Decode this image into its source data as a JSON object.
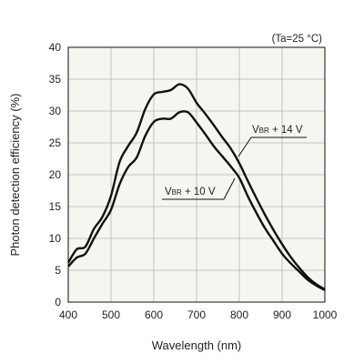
{
  "chart_data": {
    "type": "line",
    "title": "",
    "xlabel": "Wavelength (nm)",
    "ylabel": "Photon detection efficiency (%)",
    "xlim": [
      400,
      1000
    ],
    "ylim": [
      0,
      40
    ],
    "xticks": [
      400,
      500,
      600,
      700,
      800,
      900,
      1000
    ],
    "yticks": [
      0,
      5,
      10,
      15,
      20,
      25,
      30,
      35,
      40
    ],
    "grid": true,
    "annotation": "(Ta=25 °C)",
    "colors": {
      "plot_background": "#f6f5ef",
      "line": "#111111",
      "grid": "#b5b5b5"
    },
    "series": [
      {
        "label_main": "V",
        "label_sub": "BR",
        "label_rest": " + 14 V",
        "x": [
          400,
          420,
          440,
          460,
          480,
          500,
          520,
          540,
          560,
          580,
          600,
          620,
          640,
          660,
          680,
          700,
          720,
          740,
          760,
          780,
          800,
          820,
          840,
          860,
          880,
          900,
          920,
          940,
          960,
          980,
          1000
        ],
        "y": [
          6.2,
          8.3,
          8.7,
          11.5,
          13.4,
          16.7,
          22,
          24.5,
          26.6,
          30.3,
          32.6,
          33,
          33.3,
          34.2,
          33.5,
          31.3,
          29.6,
          27.8,
          25.9,
          24.1,
          21.8,
          19,
          16.3,
          13.7,
          11.3,
          9.1,
          7.1,
          5.4,
          3.9,
          2.8,
          2.0
        ]
      },
      {
        "label_main": "V",
        "label_sub": "BR",
        "label_rest": " + 10 V",
        "x": [
          400,
          420,
          440,
          460,
          480,
          500,
          520,
          540,
          560,
          580,
          600,
          620,
          640,
          660,
          680,
          700,
          720,
          740,
          760,
          780,
          800,
          820,
          840,
          860,
          880,
          900,
          920,
          940,
          960,
          980,
          1000
        ],
        "y": [
          5.6,
          7.0,
          7.6,
          10,
          12.3,
          14.5,
          18.5,
          21.2,
          22.7,
          26.1,
          28.3,
          28.8,
          28.8,
          29.8,
          29.8,
          28.2,
          26.4,
          24.5,
          22.9,
          21.3,
          19.5,
          16.6,
          14,
          11.6,
          9.6,
          7.6,
          6.1,
          4.8,
          3.5,
          2.6,
          1.9
        ]
      }
    ]
  }
}
